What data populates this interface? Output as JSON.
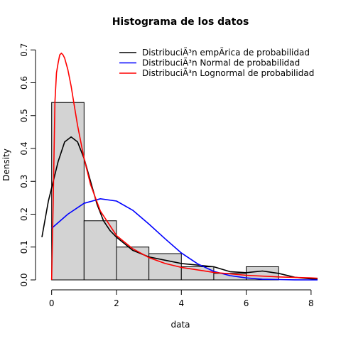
{
  "chart_data": {
    "type": "histogram",
    "title": "Histograma de los datos",
    "xlabel": "data",
    "ylabel": "Density",
    "xlim": [
      -0.3,
      8.2
    ],
    "ylim": [
      0,
      0.72
    ],
    "xticks": [
      "0",
      "2",
      "4",
      "6",
      "8"
    ],
    "yticks": [
      "0.0",
      "0.1",
      "0.2",
      "0.3",
      "0.4",
      "0.5",
      "0.6",
      "0.7"
    ],
    "bins": [
      {
        "from": 0,
        "to": 1,
        "density": 0.54
      },
      {
        "from": 1,
        "to": 2,
        "density": 0.18
      },
      {
        "from": 2,
        "to": 3,
        "density": 0.1
      },
      {
        "from": 3,
        "to": 4,
        "density": 0.08
      },
      {
        "from": 4,
        "to": 5,
        "density": 0.04
      },
      {
        "from": 5,
        "to": 6,
        "density": 0.02
      },
      {
        "from": 6,
        "to": 7,
        "density": 0.04
      },
      {
        "from": 7,
        "to": 8,
        "density": 0.0
      }
    ],
    "bar_color": "#d3d3d3",
    "legend_position": "top-right",
    "series": [
      {
        "name": "DistribuciÃ³n empÃrica de probabilidad",
        "color": "#000000",
        "x": [
          -0.3,
          -0.1,
          0.0,
          0.2,
          0.4,
          0.6,
          0.8,
          1.0,
          1.2,
          1.4,
          1.6,
          1.8,
          2.0,
          2.5,
          3.0,
          3.5,
          4.0,
          4.5,
          5.0,
          5.5,
          6.0,
          6.5,
          7.0,
          7.5,
          8.0,
          8.2
        ],
        "y": [
          0.13,
          0.24,
          0.28,
          0.36,
          0.42,
          0.435,
          0.42,
          0.37,
          0.3,
          0.23,
          0.18,
          0.15,
          0.13,
          0.09,
          0.07,
          0.06,
          0.05,
          0.045,
          0.04,
          0.025,
          0.022,
          0.027,
          0.02,
          0.008,
          0.003,
          0.002
        ]
      },
      {
        "name": "DistribuciÃ³n Normal de probabilidad",
        "color": "#0000ff",
        "x": [
          0.0,
          0.5,
          1.0,
          1.5,
          2.0,
          2.5,
          3.0,
          3.5,
          4.0,
          4.5,
          5.0,
          5.5,
          6.0,
          6.5,
          7.0,
          7.5,
          8.0,
          8.2
        ],
        "y": [
          0.157,
          0.2,
          0.233,
          0.247,
          0.24,
          0.212,
          0.17,
          0.125,
          0.082,
          0.049,
          0.026,
          0.013,
          0.006,
          0.002,
          0.001,
          0.0003,
          0.0001,
          0.0001
        ]
      },
      {
        "name": "DistribuciÃ³n Lognormal de probabilidad",
        "color": "#ff0000",
        "x": [
          0.0,
          0.05,
          0.1,
          0.15,
          0.2,
          0.25,
          0.3,
          0.35,
          0.4,
          0.5,
          0.6,
          0.7,
          0.8,
          1.0,
          1.2,
          1.5,
          2.0,
          2.5,
          3.0,
          3.5,
          4.0,
          5.0,
          6.0,
          7.0,
          8.0,
          8.2
        ],
        "y": [
          0.0,
          0.25,
          0.54,
          0.63,
          0.66,
          0.685,
          0.69,
          0.685,
          0.675,
          0.64,
          0.59,
          0.53,
          0.47,
          0.37,
          0.29,
          0.21,
          0.135,
          0.095,
          0.068,
          0.05,
          0.038,
          0.023,
          0.014,
          0.009,
          0.006,
          0.005
        ]
      }
    ]
  }
}
